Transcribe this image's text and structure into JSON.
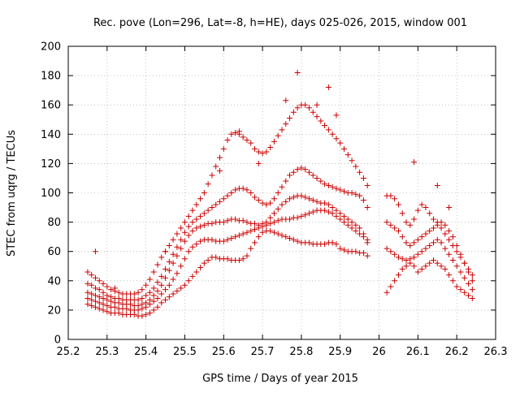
{
  "chart_data": {
    "type": "scatter",
    "title": "Rec. pove (Lon=296, Lat=-8, h=HE), days 025-026, 2015, window 001",
    "xlabel": "GPS time / Days of year 2015",
    "ylabel": "STEC from uqrg / TECUs",
    "xlim": [
      25.2,
      26.3
    ],
    "ylim": [
      0,
      200
    ],
    "xticks": [
      25.2,
      25.3,
      25.4,
      25.5,
      25.6,
      25.7,
      25.8,
      25.9,
      26,
      26.1,
      26.2,
      26.3
    ],
    "xtick_labels": [
      "25.2",
      "25.3",
      "25.4",
      "25.5",
      "25.6",
      "25.7",
      "25.8",
      "25.9",
      "26",
      "26.1",
      "26.2",
      "26.3"
    ],
    "yticks": [
      0,
      20,
      40,
      60,
      80,
      100,
      120,
      140,
      160,
      180,
      200
    ],
    "ytick_labels": [
      "0",
      "20",
      "40",
      "60",
      "80",
      "100",
      "120",
      "140",
      "160",
      "180",
      "200"
    ],
    "grid": true,
    "marker": "+",
    "color": "#cc0000",
    "series": [
      {
        "x": [
          25.25,
          25.26,
          25.27,
          25.28,
          25.29,
          25.3,
          25.31,
          25.32,
          25.33,
          25.34,
          25.35,
          25.36,
          25.37,
          25.38,
          25.39,
          25.4,
          25.41,
          25.42,
          25.43,
          25.44,
          25.45,
          25.46,
          25.47,
          25.48,
          25.49,
          25.5,
          25.51,
          25.52,
          25.53,
          25.54,
          25.55,
          25.56,
          25.57,
          25.58,
          25.59,
          25.6,
          25.61,
          25.62,
          25.63,
          25.64,
          25.65,
          25.66,
          25.67,
          25.68,
          25.69,
          25.7,
          25.71,
          25.72,
          25.73,
          25.74,
          25.75,
          25.76,
          25.77,
          25.78,
          25.79,
          25.8,
          25.81,
          25.82,
          25.83,
          25.84,
          25.85,
          25.86,
          25.87,
          25.88,
          25.89,
          25.9,
          25.91,
          25.92,
          25.93,
          25.94,
          25.95,
          25.96,
          25.97
        ],
        "y": [
          24,
          23,
          22,
          21,
          20,
          19,
          18,
          18,
          18,
          17,
          17,
          17,
          17,
          16,
          16,
          17,
          18,
          20,
          22,
          25,
          27,
          29,
          31,
          33,
          35,
          37,
          40,
          43,
          46,
          49,
          52,
          54,
          56,
          56,
          55,
          55,
          55,
          54,
          54,
          54,
          55,
          57,
          62,
          66,
          70,
          73,
          74,
          74,
          73,
          72,
          71,
          70,
          69,
          68,
          67,
          66,
          66,
          66,
          65,
          65,
          65,
          65,
          66,
          66,
          65,
          62,
          61,
          60,
          60,
          60,
          59,
          59,
          57
        ]
      },
      {
        "x": [
          25.25,
          25.26,
          25.27,
          25.28,
          25.29,
          25.3,
          25.31,
          25.32,
          25.33,
          25.34,
          25.35,
          25.36,
          25.37,
          25.38,
          25.39,
          25.4,
          25.41,
          25.42,
          25.43,
          25.44,
          25.45,
          25.46,
          25.47,
          25.48,
          25.49,
          25.5,
          25.51,
          25.52,
          25.53,
          25.54,
          25.55,
          25.56,
          25.57,
          25.58,
          25.59,
          25.6,
          25.61,
          25.62,
          25.63,
          25.64,
          25.65,
          25.66,
          25.67,
          25.68,
          25.69,
          25.7,
          25.71,
          25.72,
          25.73,
          25.74,
          25.75,
          25.76,
          25.77,
          25.78,
          25.79,
          25.8,
          25.81,
          25.82,
          25.83,
          25.84,
          25.85,
          25.86,
          25.87,
          25.88,
          25.89,
          25.9,
          25.91,
          25.92,
          25.93,
          25.94,
          25.95,
          25.96,
          25.97
        ],
        "y": [
          28,
          27,
          26,
          25,
          24,
          23,
          22,
          22,
          21,
          21,
          21,
          20,
          20,
          20,
          21,
          22,
          24,
          26,
          28,
          31,
          34,
          37,
          41,
          45,
          50,
          55,
          60,
          63,
          65,
          67,
          68,
          68,
          68,
          67,
          67,
          67,
          68,
          69,
          70,
          71,
          72,
          73,
          74,
          75,
          76,
          77,
          78,
          79,
          80,
          81,
          82,
          82,
          82,
          83,
          83,
          84,
          85,
          86,
          87,
          88,
          88,
          88,
          87,
          86,
          84,
          82,
          80,
          78,
          76,
          74,
          72,
          70,
          66
        ]
      },
      {
        "x": [
          25.25,
          25.26,
          25.27,
          25.28,
          25.29,
          25.3,
          25.31,
          25.32,
          25.33,
          25.34,
          25.35,
          25.36,
          25.37,
          25.38,
          25.39,
          25.4,
          25.41,
          25.42,
          25.43,
          25.44,
          25.45,
          25.46,
          25.47,
          25.48,
          25.49,
          25.5,
          25.51,
          25.52,
          25.53,
          25.54,
          25.55,
          25.56,
          25.57,
          25.58,
          25.59,
          25.6,
          25.61,
          25.62,
          25.63,
          25.64,
          25.65,
          25.66,
          25.67,
          25.68,
          25.69,
          25.7,
          25.71,
          25.72,
          25.73,
          25.74,
          25.75,
          25.76,
          25.77,
          25.78,
          25.79,
          25.8,
          25.81,
          25.82,
          25.83,
          25.84,
          25.85,
          25.86,
          25.87,
          25.88,
          25.89,
          25.9,
          25.91,
          25.92,
          25.93,
          25.94,
          25.95,
          25.96,
          25.97
        ],
        "y": [
          32,
          31,
          30,
          29,
          28,
          27,
          26,
          25,
          25,
          24,
          24,
          24,
          23,
          23,
          24,
          25,
          27,
          30,
          33,
          37,
          42,
          47,
          52,
          57,
          62,
          67,
          71,
          74,
          76,
          77,
          78,
          79,
          79,
          80,
          80,
          80,
          81,
          82,
          82,
          81,
          81,
          80,
          79,
          79,
          78,
          79,
          80,
          83,
          86,
          89,
          92,
          94,
          96,
          97,
          98,
          98,
          97,
          96,
          95,
          94,
          93,
          93,
          92,
          90,
          88,
          86,
          84,
          82,
          80,
          78,
          76,
          72,
          68
        ]
      },
      {
        "x": [
          25.25,
          25.26,
          25.27,
          25.28,
          25.29,
          25.3,
          25.31,
          25.32,
          25.33,
          25.34,
          25.35,
          25.36,
          25.37,
          25.38,
          25.39,
          25.4,
          25.41,
          25.42,
          25.43,
          25.44,
          25.45,
          25.46,
          25.47,
          25.48,
          25.49,
          25.5,
          25.51,
          25.52,
          25.53,
          25.54,
          25.55,
          25.56,
          25.57,
          25.58,
          25.59,
          25.6,
          25.61,
          25.62,
          25.63,
          25.64,
          25.65,
          25.66,
          25.67,
          25.68,
          25.69,
          25.7,
          25.71,
          25.72,
          25.73,
          25.74,
          25.75,
          25.76,
          25.77,
          25.78,
          25.79,
          25.8,
          25.81,
          25.82,
          25.83,
          25.84,
          25.85,
          25.86,
          25.87,
          25.88,
          25.89,
          25.9,
          25.91,
          25.92,
          25.93,
          25.94,
          25.95,
          25.96,
          25.97
        ],
        "y": [
          38,
          37,
          35,
          34,
          32,
          30,
          29,
          28,
          28,
          27,
          27,
          27,
          27,
          27,
          28,
          30,
          32,
          35,
          39,
          43,
          48,
          53,
          58,
          63,
          68,
          73,
          77,
          80,
          82,
          84,
          86,
          88,
          90,
          92,
          94,
          96,
          98,
          100,
          102,
          103,
          103,
          102,
          100,
          97,
          95,
          93,
          92,
          93,
          96,
          100,
          104,
          108,
          112,
          114,
          116,
          117,
          116,
          114,
          112,
          110,
          108,
          106,
          105,
          104,
          103,
          102,
          101,
          100,
          100,
          99,
          98,
          95,
          90
        ]
      },
      {
        "x": [
          25.25,
          25.26,
          25.27,
          25.28,
          25.29,
          25.3,
          25.31,
          25.32,
          25.33,
          25.34,
          25.35,
          25.36,
          25.37,
          25.38,
          25.39,
          25.4,
          25.41,
          25.42,
          25.43,
          25.44,
          25.45,
          25.46,
          25.47,
          25.48,
          25.49,
          25.5,
          25.51,
          25.52,
          25.53,
          25.54,
          25.55,
          25.56,
          25.57,
          25.58,
          25.59,
          25.6,
          25.61,
          25.62,
          25.63,
          25.64,
          25.65,
          25.66,
          25.67,
          25.68,
          25.69,
          25.7,
          25.71,
          25.72,
          25.73,
          25.74,
          25.75,
          25.76,
          25.77,
          25.78,
          25.79,
          25.8,
          25.81,
          25.82,
          25.83,
          25.84,
          25.85,
          25.86,
          25.87,
          25.88,
          25.89,
          25.9,
          25.91,
          25.92,
          25.93,
          25.94,
          25.95,
          25.96,
          25.97
        ],
        "y": [
          46,
          44,
          42,
          40,
          38,
          36,
          34,
          33,
          32,
          31,
          31,
          31,
          31,
          32,
          34,
          37,
          41,
          46,
          51,
          56,
          60,
          64,
          68,
          72,
          76,
          80,
          84,
          88,
          92,
          96,
          100,
          106,
          112,
          118,
          124,
          130,
          136,
          140,
          141,
          140,
          138,
          136,
          134,
          130,
          128,
          127,
          128,
          131,
          135,
          139,
          143,
          147,
          151,
          155,
          158,
          160,
          160,
          158,
          155,
          152,
          149,
          146,
          143,
          140,
          137,
          134,
          130,
          126,
          122,
          118,
          114,
          110,
          105
        ]
      },
      {
        "x": [
          26.02,
          26.03,
          26.04,
          26.05,
          26.06,
          26.07,
          26.08,
          26.09,
          26.1,
          26.11,
          26.12,
          26.13,
          26.14,
          26.15,
          26.16,
          26.17,
          26.18,
          26.19,
          26.2,
          26.21,
          26.22,
          26.23,
          26.24
        ],
        "y": [
          32,
          36,
          40,
          44,
          48,
          50,
          52,
          50,
          46,
          48,
          50,
          52,
          54,
          52,
          50,
          48,
          44,
          40,
          36,
          34,
          32,
          30,
          28
        ]
      },
      {
        "x": [
          26.02,
          26.03,
          26.04,
          26.05,
          26.06,
          26.07,
          26.08,
          26.09,
          26.1,
          26.11,
          26.12,
          26.13,
          26.14,
          26.15,
          26.16,
          26.17,
          26.18,
          26.19,
          26.2,
          26.21,
          26.22,
          26.23,
          26.24
        ],
        "y": [
          62,
          60,
          58,
          56,
          55,
          54,
          55,
          56,
          58,
          60,
          62,
          64,
          66,
          68,
          66,
          62,
          58,
          54,
          50,
          46,
          42,
          38,
          34
        ]
      },
      {
        "x": [
          26.02,
          26.03,
          26.04,
          26.05,
          26.06,
          26.07,
          26.08,
          26.09,
          26.1,
          26.11,
          26.12,
          26.13,
          26.14,
          26.15,
          26.16,
          26.17,
          26.18,
          26.19,
          26.2,
          26.21,
          26.22,
          26.23,
          26.24
        ],
        "y": [
          80,
          78,
          76,
          74,
          70,
          66,
          64,
          66,
          68,
          70,
          72,
          74,
          76,
          78,
          76,
          72,
          68,
          64,
          60,
          56,
          52,
          48,
          44
        ]
      },
      {
        "x": [
          26.02,
          26.03,
          26.04,
          26.05,
          26.06,
          26.07,
          26.08,
          26.09,
          26.1,
          26.11,
          26.12,
          26.13,
          26.14,
          26.15,
          26.16,
          26.17,
          26.18,
          26.19,
          26.2,
          26.21,
          26.22,
          26.23,
          26.24
        ],
        "y": [
          98,
          98,
          96,
          92,
          86,
          80,
          78,
          82,
          88,
          92,
          90,
          86,
          82,
          80,
          80,
          78,
          74,
          70,
          64,
          58,
          52,
          46,
          40
        ]
      },
      {
        "x": [
          25.27,
          25.32,
          25.45,
          25.59,
          25.64,
          25.69,
          25.76,
          25.79,
          25.84,
          25.87,
          25.89,
          26.09,
          26.15,
          26.18
        ],
        "y": [
          60,
          35,
          60,
          115,
          142,
          120,
          163,
          182,
          160,
          172,
          153,
          121,
          105,
          90
        ]
      }
    ]
  }
}
